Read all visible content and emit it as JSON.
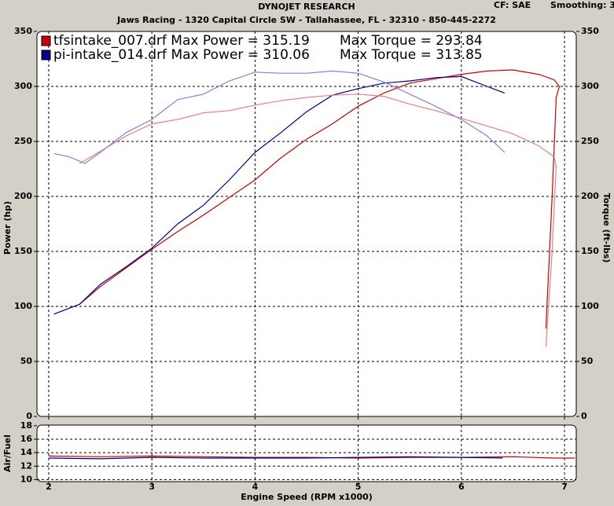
{
  "chart_data": [
    {
      "type": "line",
      "title": "DYNOJET RESEARCH",
      "subtitle": "Jaws Racing - 1320 Capital Circle SW - Tallahassee, FL - 32310 - 850-445-2272",
      "notes": [
        "CF: SAE",
        "Smoothing: 3"
      ],
      "ylabel": "Power (hp)",
      "y2label": "Torque (ft-lbs)",
      "xlim": [
        1.886,
        7.114
      ],
      "xticks": [
        2,
        3,
        4,
        5,
        6,
        7
      ],
      "ylim": [
        0,
        350
      ],
      "yticks": [
        0,
        50,
        100,
        150,
        200,
        250,
        300,
        350
      ],
      "y2lim": [
        0,
        350
      ],
      "y2ticks": [
        0,
        50,
        100,
        150,
        200,
        250,
        300,
        350
      ],
      "grid": true,
      "series": [
        {
          "name": "tfsintake_007.drf Max Power = 315.19",
          "color": "#cc0000",
          "x": [
            2.3,
            2.5,
            2.75,
            3,
            3.25,
            3.5,
            3.75,
            4,
            4.25,
            4.5,
            4.75,
            5,
            5.25,
            5.5,
            5.75,
            6,
            6.25,
            6.5,
            6.75,
            6.9,
            6.95,
            6.92,
            6.88,
            6.82
          ],
          "values": [
            102,
            118,
            135,
            152,
            168,
            183,
            199,
            215,
            235,
            252,
            266,
            282,
            294,
            303,
            307,
            311,
            314,
            315,
            311,
            306,
            300,
            290,
            200,
            80
          ]
        },
        {
          "name": "pi-intake_014.drf Max Power = 310.06",
          "color": "#00008b",
          "x": [
            2.05,
            2.3,
            2.5,
            2.75,
            3,
            3.25,
            3.5,
            3.75,
            4,
            4.25,
            4.5,
            4.75,
            5,
            5.25,
            5.5,
            5.75,
            6,
            6.25,
            6.42
          ],
          "values": [
            93,
            102,
            120,
            136,
            153,
            175,
            192,
            215,
            240,
            258,
            277,
            292,
            298,
            303,
            305,
            308,
            309,
            300,
            294
          ]
        },
        {
          "name": "Max Torque = 293.84",
          "color": "#e88080",
          "axis": "y2",
          "x": [
            2.3,
            2.5,
            2.75,
            3,
            3.25,
            3.5,
            3.75,
            4,
            4.25,
            4.5,
            4.75,
            5,
            5.25,
            5.5,
            5.75,
            6,
            6.25,
            6.5,
            6.75,
            6.9,
            6.92,
            6.88,
            6.82
          ],
          "values": [
            230,
            241,
            255,
            266,
            270,
            276,
            278,
            283,
            287,
            290,
            292,
            293,
            291,
            284,
            278,
            271,
            264,
            257,
            246,
            236,
            228,
            150,
            63
          ]
        },
        {
          "name": "Max Torque = 313.85",
          "color": "#8080e0",
          "axis": "y2",
          "x": [
            2.05,
            2.2,
            2.35,
            2.5,
            2.75,
            3,
            3.25,
            3.5,
            3.75,
            4,
            4.25,
            4.5,
            4.75,
            5,
            5.25,
            5.5,
            5.75,
            6,
            6.25,
            6.42
          ],
          "values": [
            239,
            236,
            230,
            240,
            258,
            270,
            288,
            293,
            305,
            313,
            312,
            312,
            314,
            312,
            304,
            293,
            282,
            270,
            255,
            240
          ]
        }
      ]
    },
    {
      "type": "line",
      "ylabel": "Air/Fuel",
      "xlabel": "Engine Speed (RPM x1000)",
      "xlim": [
        1.886,
        7.114
      ],
      "xticks": [
        2,
        3,
        4,
        5,
        6,
        7
      ],
      "ylim": [
        9.7,
        18.1
      ],
      "yticks": [
        10,
        12,
        14,
        16,
        18
      ],
      "grid": true,
      "series": [
        {
          "color": "#cc0000",
          "x": [
            2,
            2.5,
            3,
            3.5,
            4,
            4.5,
            5,
            5.5,
            6,
            6.5,
            6.9,
            7.1
          ],
          "values": [
            13.5,
            13.4,
            13.5,
            13.4,
            13.3,
            13.3,
            13.2,
            13.3,
            13.3,
            13.4,
            13.2,
            13.2
          ]
        },
        {
          "color": "#00008b",
          "x": [
            2,
            2.5,
            3,
            3.5,
            4,
            4.5,
            5,
            5.5,
            6,
            6.4
          ],
          "values": [
            13.2,
            13.1,
            13.3,
            13.2,
            13.2,
            13.2,
            13.3,
            13.4,
            13.3,
            13.2
          ]
        }
      ]
    }
  ]
}
